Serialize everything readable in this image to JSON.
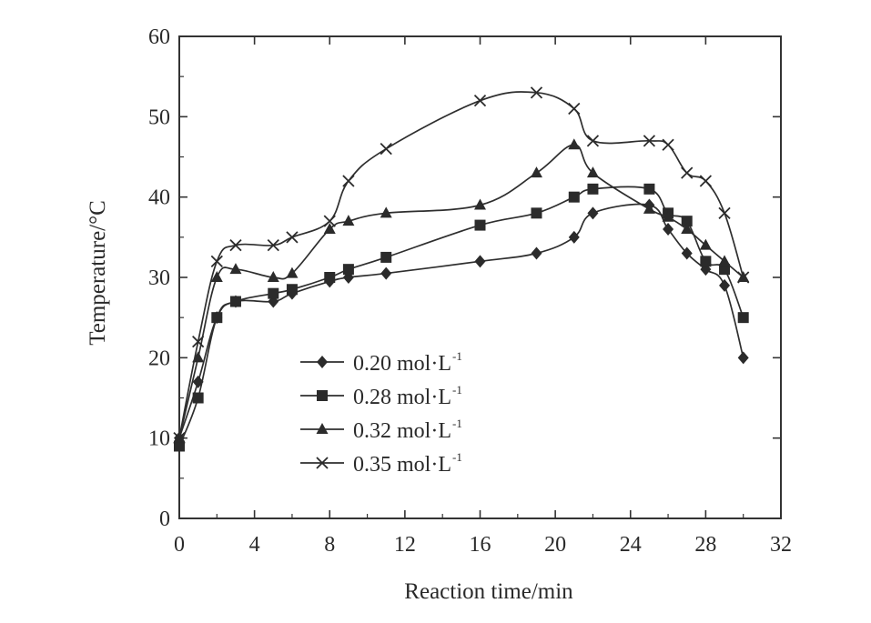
{
  "chart_data": {
    "type": "line",
    "xlabel": "Reaction time/min",
    "ylabel": "Temperature/°C",
    "xlim": [
      0,
      32
    ],
    "ylim": [
      0,
      60
    ],
    "xticks": [
      "0",
      "4",
      "8",
      "12",
      "16",
      "20",
      "24",
      "28",
      "32"
    ],
    "yticks": [
      "0",
      "10",
      "20",
      "30",
      "40",
      "50",
      "60"
    ],
    "grid": false,
    "legend_position": "lower-left",
    "series": [
      {
        "name": "0.20 mol·L",
        "name_sup": "-1",
        "marker": "diamond",
        "points": [
          [
            0,
            10
          ],
          [
            1,
            17
          ],
          [
            2,
            25
          ],
          [
            3,
            27
          ],
          [
            5,
            27
          ],
          [
            6,
            28
          ],
          [
            8,
            29.5
          ],
          [
            9,
            30
          ],
          [
            11,
            30.5
          ],
          [
            16,
            32
          ],
          [
            19,
            33
          ],
          [
            21,
            35
          ],
          [
            22,
            38
          ],
          [
            25,
            39
          ],
          [
            26,
            36
          ],
          [
            27,
            33
          ],
          [
            28,
            31
          ],
          [
            29,
            29
          ],
          [
            30,
            20
          ]
        ]
      },
      {
        "name": "0.28 mol·L",
        "name_sup": "-1",
        "marker": "square",
        "points": [
          [
            0,
            9
          ],
          [
            1,
            15
          ],
          [
            2,
            25
          ],
          [
            3,
            27
          ],
          [
            5,
            28
          ],
          [
            6,
            28.5
          ],
          [
            8,
            30
          ],
          [
            9,
            31
          ],
          [
            11,
            32.5
          ],
          [
            16,
            36.5
          ],
          [
            19,
            38
          ],
          [
            21,
            40
          ],
          [
            22,
            41
          ],
          [
            25,
            41
          ],
          [
            26,
            38
          ],
          [
            27,
            37
          ],
          [
            28,
            32
          ],
          [
            29,
            31
          ],
          [
            30,
            25
          ]
        ]
      },
      {
        "name": "0.32 mol·L",
        "name_sup": "-1",
        "marker": "triangle",
        "points": [
          [
            0,
            10
          ],
          [
            1,
            20
          ],
          [
            2,
            30
          ],
          [
            3,
            31
          ],
          [
            5,
            30
          ],
          [
            6,
            30.5
          ],
          [
            8,
            36
          ],
          [
            9,
            37
          ],
          [
            11,
            38
          ],
          [
            16,
            39
          ],
          [
            19,
            43
          ],
          [
            21,
            46.5
          ],
          [
            22,
            43
          ],
          [
            25,
            38.5
          ],
          [
            26,
            37.5
          ],
          [
            27,
            36
          ],
          [
            28,
            34
          ],
          [
            29,
            32
          ],
          [
            30,
            30
          ]
        ]
      },
      {
        "name": "0.35 mol·L",
        "name_sup": "-1",
        "marker": "x",
        "points": [
          [
            0,
            10
          ],
          [
            1,
            22
          ],
          [
            2,
            32
          ],
          [
            3,
            34
          ],
          [
            5,
            34
          ],
          [
            6,
            35
          ],
          [
            8,
            37
          ],
          [
            9,
            42
          ],
          [
            11,
            46
          ],
          [
            16,
            52
          ],
          [
            19,
            53
          ],
          [
            21,
            51
          ],
          [
            22,
            47
          ],
          [
            25,
            47
          ],
          [
            26,
            46.5
          ],
          [
            27,
            43
          ],
          [
            28,
            42
          ],
          [
            29,
            38
          ],
          [
            30,
            30
          ]
        ]
      }
    ]
  }
}
